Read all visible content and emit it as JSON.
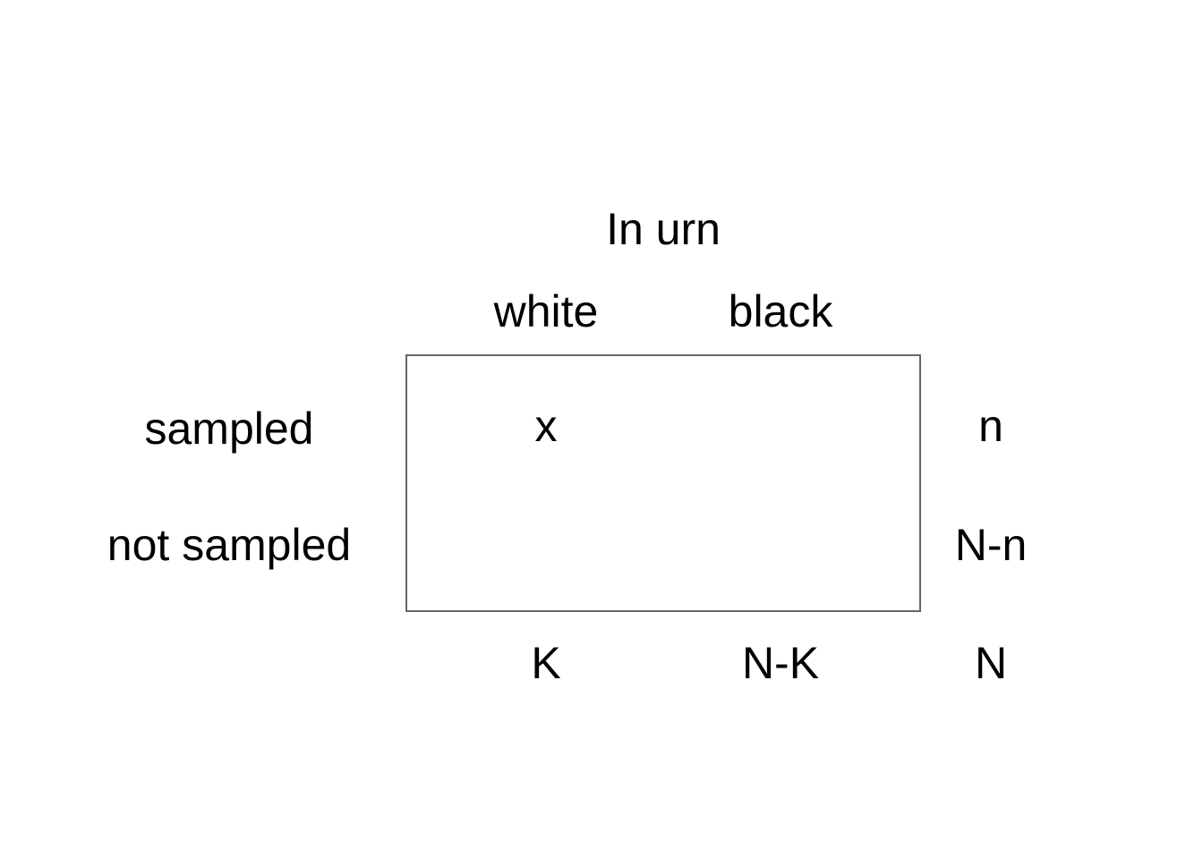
{
  "header": {
    "title": "In urn"
  },
  "columns": {
    "white": "white",
    "black": "black"
  },
  "rows": {
    "sampled": "sampled",
    "not_sampled": "not sampled"
  },
  "cells": {
    "sampled_white": "x"
  },
  "row_totals": {
    "sampled": "n",
    "not_sampled": "N-n"
  },
  "column_totals": {
    "white": "K",
    "black": "N-K",
    "grand": "N"
  },
  "colors": {
    "text": "#000000",
    "box_border": "#666666",
    "background": "#ffffff"
  }
}
